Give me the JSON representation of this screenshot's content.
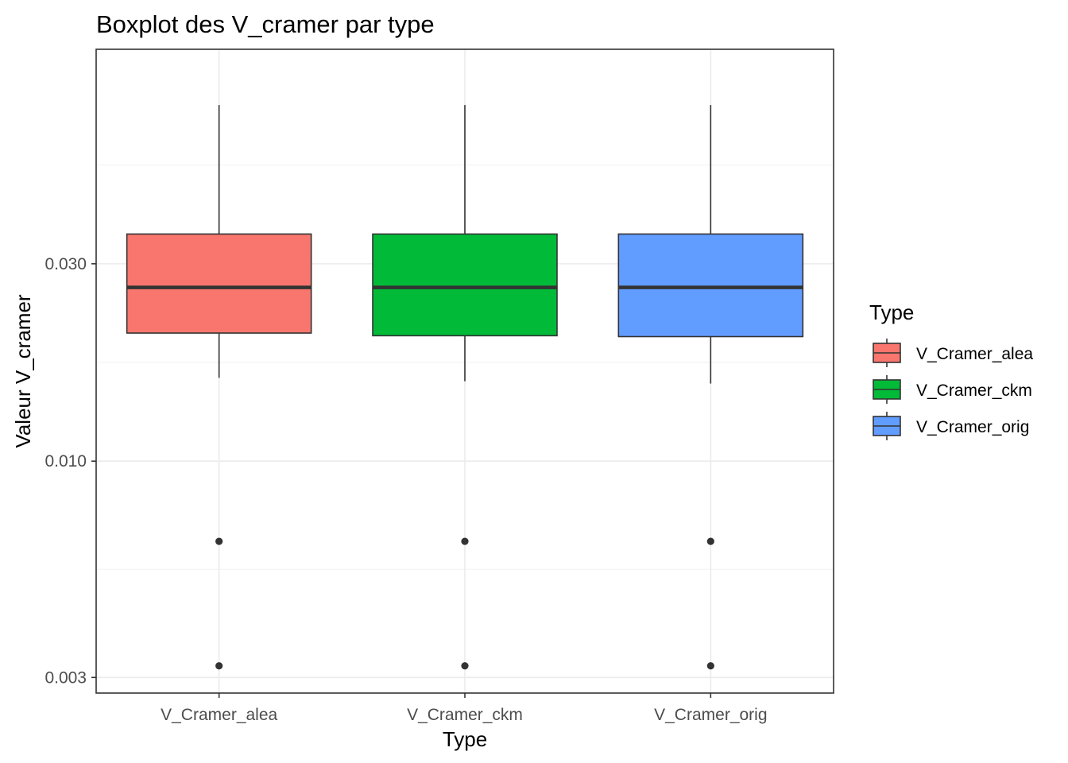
{
  "chart_data": {
    "type": "box",
    "title": "Boxplot des V_cramer par type",
    "xlabel": "Type",
    "ylabel": "Valeur V_cramer",
    "y_scale": "log10",
    "ylim": [
      0.00275,
      0.099
    ],
    "y_ticks": [
      0.003,
      0.01,
      0.03
    ],
    "y_tick_labels": [
      "0.003",
      "0.010",
      "0.030"
    ],
    "grid": true,
    "legend": {
      "title": "Type",
      "position": "right",
      "entries": [
        "V_Cramer_alea",
        "V_Cramer_ckm",
        "V_Cramer_orig"
      ]
    },
    "categories": [
      "V_Cramer_alea",
      "V_Cramer_ckm",
      "V_Cramer_orig"
    ],
    "series": [
      {
        "category": "V_Cramer_alea",
        "color": "#F8766D",
        "whisker_low": 0.0159,
        "q1": 0.0204,
        "median": 0.0263,
        "q3": 0.0354,
        "whisker_high": 0.0726,
        "outliers": [
          0.0064,
          0.0032
        ]
      },
      {
        "category": "V_Cramer_ckm",
        "color": "#00BA38",
        "whisker_low": 0.0156,
        "q1": 0.0201,
        "median": 0.0263,
        "q3": 0.0354,
        "whisker_high": 0.0726,
        "outliers": [
          0.0064,
          0.0032
        ]
      },
      {
        "category": "V_Cramer_orig",
        "color": "#619CFF",
        "whisker_low": 0.0154,
        "q1": 0.02,
        "median": 0.0263,
        "q3": 0.0354,
        "whisker_high": 0.0726,
        "outliers": [
          0.0064,
          0.0032
        ]
      }
    ]
  }
}
